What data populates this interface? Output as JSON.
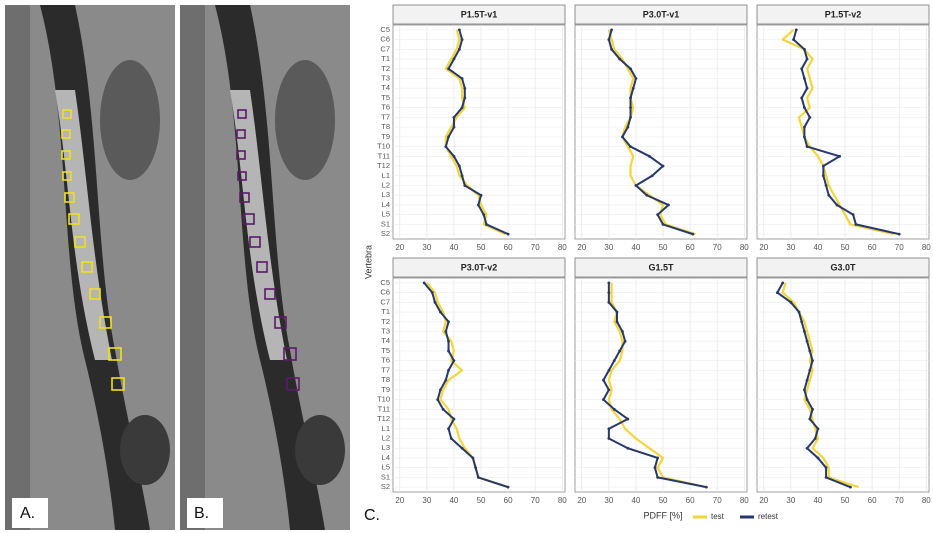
{
  "figure": {
    "panels": [
      "A.",
      "B.",
      "C."
    ],
    "xlabel": "PDFF [%]",
    "ylabel": "Vertebra"
  },
  "chart_data": [
    {
      "type": "line",
      "title": "P1.5T-v1",
      "categories": [
        "C5",
        "C6",
        "C7",
        "T1",
        "T2",
        "T3",
        "T4",
        "T5",
        "T6",
        "T7",
        "T8",
        "T9",
        "T10",
        "T11",
        "T12",
        "L1",
        "L2",
        "L3",
        "L4",
        "L5",
        "S1",
        "S2"
      ],
      "series": [
        {
          "name": "test",
          "color": "#f3d53c",
          "values": [
            41,
            42,
            41,
            39,
            37,
            42,
            43,
            43,
            44,
            41,
            39,
            37,
            37,
            39,
            41,
            42,
            45,
            49,
            50,
            52,
            51,
            59
          ]
        },
        {
          "name": "retest",
          "color": "#27386a",
          "values": [
            42,
            43,
            42,
            40,
            38,
            43,
            44,
            44,
            43,
            40,
            40,
            38,
            37,
            40,
            42,
            43,
            44,
            50,
            49,
            51,
            52,
            60
          ]
        }
      ],
      "xlim": [
        17.5,
        81
      ],
      "xticks": [
        20,
        30,
        40,
        50,
        60,
        70,
        80
      ],
      "grid": true
    },
    {
      "type": "line",
      "title": "P3.0T-v1",
      "categories": [
        "C5",
        "C6",
        "C7",
        "T1",
        "T2",
        "T3",
        "T4",
        "T5",
        "T6",
        "T7",
        "T8",
        "T9",
        "T10",
        "T11",
        "T12",
        "L1",
        "L2",
        "L3",
        "L4",
        "L5",
        "S1",
        "S2"
      ],
      "series": [
        {
          "name": "test",
          "color": "#f3d53c",
          "values": [
            30,
            31,
            32,
            35,
            37,
            39,
            38,
            38,
            39,
            38,
            36,
            35,
            37,
            39,
            38,
            38,
            40,
            45,
            50,
            49,
            51,
            62
          ]
        },
        {
          "name": "retest",
          "color": "#27386a",
          "values": [
            31,
            30,
            31,
            34,
            38,
            40,
            39,
            38,
            38,
            38,
            37,
            35,
            38,
            45,
            50,
            46,
            40,
            44,
            52,
            48,
            50,
            61
          ]
        }
      ],
      "xlim": [
        17.5,
        81
      ],
      "xticks": [
        20,
        30,
        40,
        50,
        60,
        70,
        80
      ],
      "grid": true
    },
    {
      "type": "line",
      "title": "P1.5T-v2",
      "categories": [
        "C5",
        "C6",
        "C7",
        "T1",
        "T2",
        "T3",
        "T4",
        "T5",
        "T6",
        "T7",
        "T8",
        "T9",
        "T10",
        "T11",
        "T12",
        "L1",
        "L2",
        "L3",
        "L4",
        "L5",
        "S1",
        "S2"
      ],
      "series": [
        {
          "name": "test",
          "color": "#f3d53c",
          "values": [
            31,
            27,
            35,
            38,
            36,
            37,
            38,
            36,
            37,
            33,
            34,
            35,
            37,
            40,
            42,
            43,
            44,
            46,
            48,
            50,
            52,
            68
          ]
        },
        {
          "name": "retest",
          "color": "#27386a",
          "values": [
            32,
            31,
            35,
            36,
            34,
            35,
            36,
            34,
            35,
            37,
            35,
            35,
            36,
            48,
            42,
            42,
            43,
            44,
            47,
            53,
            54,
            70
          ]
        }
      ],
      "xlim": [
        17.5,
        81
      ],
      "xticks": [
        20,
        30,
        40,
        50,
        60,
        70,
        80
      ],
      "grid": true
    },
    {
      "type": "line",
      "title": "P3.0T-v2",
      "categories": [
        "C5",
        "C6",
        "C7",
        "T1",
        "T2",
        "T3",
        "T4",
        "T5",
        "T6",
        "T7",
        "T8",
        "T9",
        "T10",
        "T11",
        "T12",
        "L1",
        "L2",
        "L3",
        "L4",
        "L5",
        "S1",
        "S2"
      ],
      "series": [
        {
          "name": "test",
          "color": "#f3d53c",
          "values": [
            30,
            33,
            34,
            36,
            37,
            36,
            39,
            40,
            39,
            43,
            38,
            36,
            35,
            38,
            39,
            41,
            42,
            44,
            47,
            48,
            49,
            60
          ]
        },
        {
          "name": "retest",
          "color": "#27386a",
          "values": [
            29,
            32,
            33,
            35,
            38,
            37,
            38,
            38,
            40,
            38,
            37,
            35,
            34,
            36,
            40,
            38,
            39,
            43,
            47,
            48,
            49,
            60
          ]
        }
      ],
      "xlim": [
        17.5,
        81
      ],
      "xticks": [
        20,
        30,
        40,
        50,
        60,
        70,
        80
      ],
      "grid": true
    },
    {
      "type": "line",
      "title": "G1.5T",
      "categories": [
        "C5",
        "C6",
        "C7",
        "T1",
        "T2",
        "T3",
        "T4",
        "T5",
        "T6",
        "T7",
        "T8",
        "T9",
        "T10",
        "T11",
        "T12",
        "L1",
        "L2",
        "L3",
        "L4",
        "L5",
        "S1",
        "S2"
      ],
      "series": [
        {
          "name": "test",
          "color": "#f3d53c",
          "values": [
            31,
            31,
            31,
            33,
            32,
            34,
            35,
            35,
            34,
            31,
            30,
            31,
            30,
            31,
            34,
            36,
            40,
            45,
            50,
            48,
            50,
            66
          ]
        },
        {
          "name": "retest",
          "color": "#27386a",
          "values": [
            30,
            30,
            30,
            33,
            33,
            35,
            36,
            34,
            32,
            30,
            28,
            30,
            28,
            32,
            37,
            30,
            30,
            37,
            48,
            47,
            48,
            66
          ]
        }
      ],
      "xlim": [
        17.5,
        81
      ],
      "xticks": [
        20,
        30,
        40,
        50,
        60,
        70,
        80
      ],
      "grid": true
    },
    {
      "type": "line",
      "title": "G3.0T",
      "categories": [
        "C5",
        "C6",
        "C7",
        "T1",
        "T2",
        "T3",
        "T4",
        "T5",
        "T6",
        "T7",
        "T8",
        "T9",
        "T10",
        "T11",
        "T12",
        "L1",
        "L2",
        "L3",
        "L4",
        "L5",
        "S1",
        "S2"
      ],
      "series": [
        {
          "name": "test",
          "color": "#f3d53c",
          "values": [
            28,
            27,
            31,
            33,
            35,
            36,
            37,
            38,
            37,
            38,
            37,
            36,
            35,
            37,
            38,
            39,
            40,
            38,
            42,
            44,
            44,
            55
          ]
        },
        {
          "name": "retest",
          "color": "#27386a",
          "values": [
            27,
            25,
            30,
            33,
            34,
            35,
            36,
            37,
            38,
            37,
            36,
            35,
            36,
            38,
            37,
            40,
            39,
            36,
            40,
            43,
            43,
            52
          ]
        }
      ],
      "xlim": [
        17.5,
        81
      ],
      "xticks": [
        20,
        30,
        40,
        50,
        60,
        70,
        80
      ],
      "grid": true
    }
  ]
}
